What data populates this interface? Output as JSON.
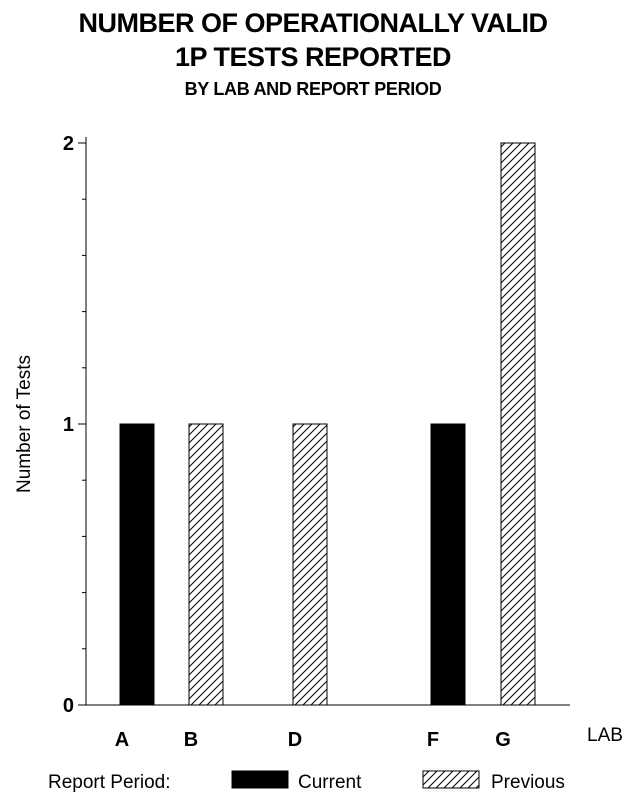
{
  "title_line1": "NUMBER OF OPERATIONALLY VALID",
  "title_line2": "1P TESTS REPORTED",
  "subtitle": "BY LAB AND REPORT PERIOD",
  "chart_data": {
    "type": "bar",
    "title": "NUMBER OF OPERATIONALLY VALID 1P TESTS REPORTED",
    "subtitle": "BY LAB AND REPORT PERIOD",
    "xlabel": "LAB",
    "ylabel": "Number of Tests",
    "categories": [
      "A",
      "B",
      "D",
      "F",
      "G"
    ],
    "ylim": [
      0,
      2
    ],
    "yticks": [
      0,
      1,
      2
    ],
    "series": [
      {
        "name": "Current",
        "fill": "solid",
        "color": "#000000",
        "values": [
          1,
          0,
          0,
          1,
          0
        ]
      },
      {
        "name": "Previous",
        "fill": "hatch",
        "color": "#000000",
        "values": [
          0,
          1,
          1,
          0,
          2
        ]
      }
    ],
    "legend": {
      "title": "Report Period:",
      "placement": "bottom"
    },
    "grid": false
  }
}
